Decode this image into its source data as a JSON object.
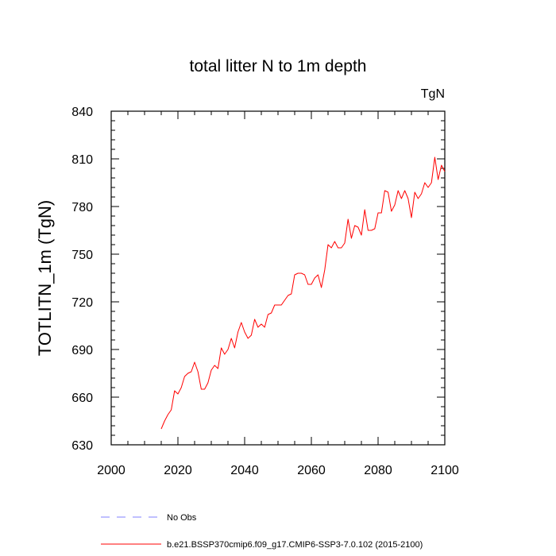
{
  "chart_data": {
    "type": "line",
    "title": "total litter N to 1m depth",
    "units_label": "TgN",
    "ylabel": "TOTLITN_1m  (TgN)",
    "xlabel": "",
    "xlim": [
      2000,
      2100
    ],
    "ylim": [
      630,
      840
    ],
    "x_ticks": [
      2000,
      2020,
      2040,
      2060,
      2080,
      2100
    ],
    "y_ticks": [
      630,
      660,
      690,
      720,
      750,
      780,
      810,
      840
    ],
    "grid": false,
    "legend": {
      "placement": "bottom",
      "entries": [
        {
          "label": "No Obs",
          "color": "#8080ff",
          "dash": true
        },
        {
          "label": "b.e21.BSSP370cmip6.f09_g17.CMIP6-SSP3-7.0.102 (2015-2100)",
          "color": "#ff0000",
          "dash": false
        }
      ]
    },
    "series": [
      {
        "name": "b.e21.BSSP370cmip6.f09_g17.CMIP6-SSP3-7.0.102 (2015-2100)",
        "color": "#ff0000",
        "x": [
          2015,
          2016,
          2017,
          2018,
          2019,
          2020,
          2021,
          2022,
          2023,
          2024,
          2025,
          2026,
          2027,
          2028,
          2029,
          2030,
          2031,
          2032,
          2033,
          2034,
          2035,
          2036,
          2037,
          2038,
          2039,
          2040,
          2041,
          2042,
          2043,
          2044,
          2045,
          2046,
          2047,
          2048,
          2049,
          2050,
          2051,
          2052,
          2053,
          2054,
          2055,
          2056,
          2057,
          2058,
          2059,
          2060,
          2061,
          2062,
          2063,
          2064,
          2065,
          2066,
          2067,
          2068,
          2069,
          2070,
          2071,
          2072,
          2073,
          2074,
          2075,
          2076,
          2077,
          2078,
          2079,
          2080,
          2081,
          2082,
          2083,
          2084,
          2085,
          2086,
          2087,
          2088,
          2089,
          2090,
          2091,
          2092,
          2093,
          2094,
          2095,
          2096,
          2097,
          2098,
          2099,
          2100
        ],
        "y": [
          640,
          645,
          649,
          652,
          664,
          662,
          666,
          673,
          675,
          676,
          682,
          676,
          665,
          665,
          669,
          677,
          680,
          678,
          691,
          687,
          690,
          697,
          691,
          701,
          707,
          701,
          697,
          699,
          709,
          704,
          706,
          704,
          712,
          713,
          718,
          718,
          718,
          721,
          724,
          725,
          737,
          738,
          738,
          737,
          731,
          731,
          735,
          737,
          729,
          740,
          756,
          754,
          758,
          754,
          754,
          757,
          772,
          760,
          768,
          767,
          762,
          778,
          765,
          765,
          766,
          776,
          776,
          790,
          789,
          777,
          781,
          790,
          785,
          790,
          785,
          773,
          789,
          785,
          788,
          795,
          792,
          795,
          811,
          797,
          806,
          802
        ]
      }
    ]
  }
}
